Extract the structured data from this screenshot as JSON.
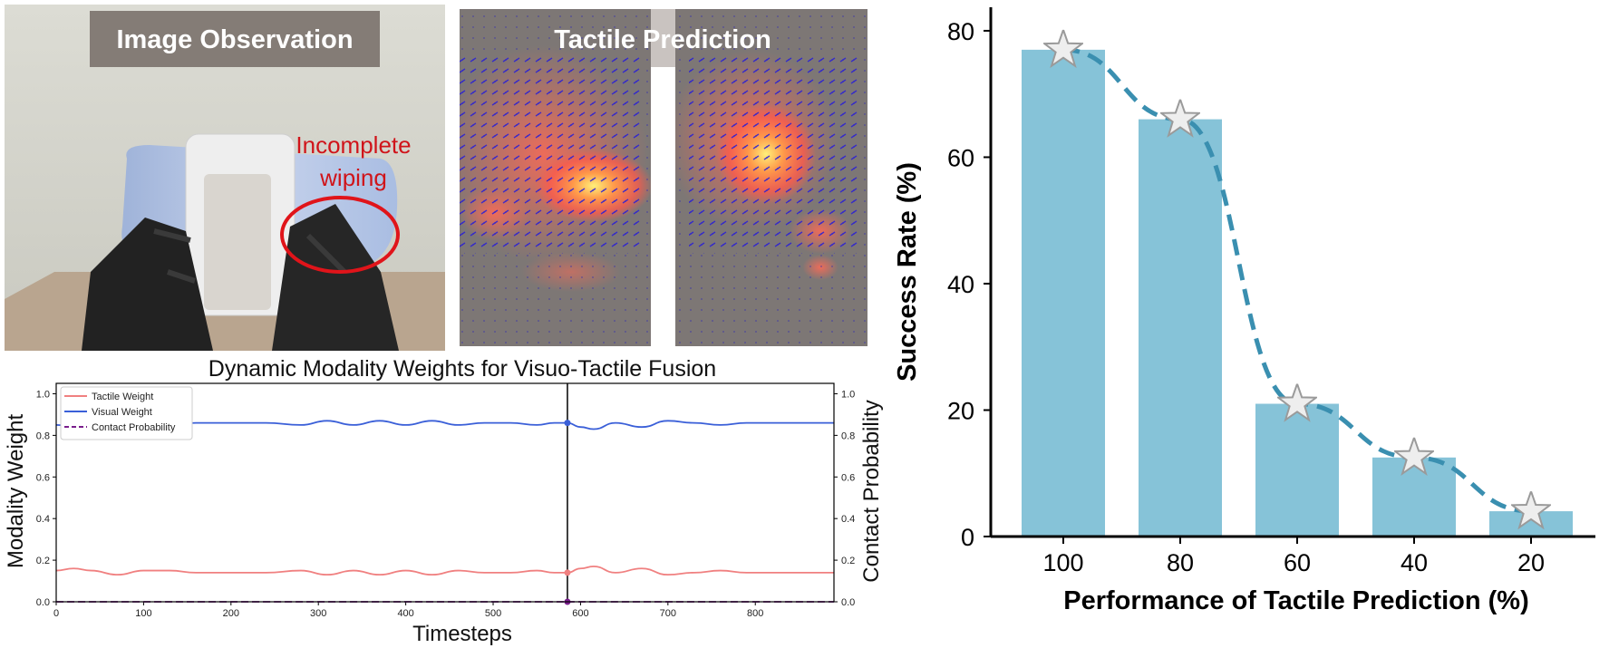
{
  "panels": {
    "image_observation": {
      "title": "Image Observation",
      "annotation": [
        "Incomplete",
        "wiping"
      ],
      "accent_color": "#d0141a"
    },
    "tactile_prediction": {
      "title": "Tactile Prediction",
      "arrow_color": "#2a1fd6"
    }
  },
  "chart_data": [
    {
      "type": "line",
      "title": "Dynamic Modality Weights for Visuo-Tactile Fusion",
      "xlabel": "Timesteps",
      "ylabel": "Modality Weight",
      "y2label": "Contact Probability",
      "xlim": [
        0,
        890
      ],
      "ylim": [
        0,
        1.05
      ],
      "y2lim": [
        0,
        1.05
      ],
      "xticks": [
        0,
        100,
        200,
        300,
        400,
        500,
        600,
        700,
        800
      ],
      "yticks": [
        0.0,
        0.2,
        0.4,
        0.6,
        0.8,
        1.0
      ],
      "y2ticks": [
        0.0,
        0.2,
        0.4,
        0.6,
        0.8,
        1.0
      ],
      "marker_x": 585,
      "legend_position": "top-left",
      "series": [
        {
          "name": "Tactile Weight",
          "color": "#f08080",
          "style": "solid",
          "x": [
            0,
            20,
            40,
            70,
            100,
            130,
            160,
            200,
            240,
            280,
            310,
            340,
            370,
            400,
            430,
            460,
            490,
            520,
            550,
            570,
            585,
            600,
            615,
            640,
            670,
            700,
            730,
            760,
            790,
            820,
            850,
            890
          ],
          "y": [
            0.15,
            0.16,
            0.15,
            0.13,
            0.15,
            0.15,
            0.14,
            0.14,
            0.14,
            0.15,
            0.13,
            0.15,
            0.13,
            0.15,
            0.13,
            0.15,
            0.14,
            0.14,
            0.15,
            0.14,
            0.14,
            0.16,
            0.17,
            0.14,
            0.16,
            0.13,
            0.14,
            0.15,
            0.14,
            0.14,
            0.14,
            0.14
          ]
        },
        {
          "name": "Visual Weight",
          "color": "#3a5fd8",
          "style": "solid",
          "x": [
            0,
            20,
            40,
            70,
            100,
            130,
            160,
            200,
            240,
            280,
            310,
            340,
            370,
            400,
            430,
            460,
            490,
            520,
            550,
            570,
            585,
            600,
            615,
            640,
            670,
            700,
            730,
            760,
            790,
            820,
            850,
            890
          ],
          "y": [
            0.85,
            0.84,
            0.85,
            0.87,
            0.85,
            0.85,
            0.86,
            0.86,
            0.86,
            0.85,
            0.87,
            0.85,
            0.87,
            0.85,
            0.87,
            0.85,
            0.86,
            0.86,
            0.85,
            0.86,
            0.86,
            0.84,
            0.83,
            0.86,
            0.84,
            0.87,
            0.86,
            0.85,
            0.86,
            0.86,
            0.86,
            0.86
          ]
        },
        {
          "name": "Contact Probability",
          "color": "#7a1e8c",
          "style": "dashed",
          "x": [
            0,
            890
          ],
          "y": [
            0.0,
            0.0
          ]
        }
      ]
    },
    {
      "type": "bar",
      "title": "",
      "xlabel": "Performance of Tactile Prediction (%)",
      "ylabel": "Success Rate (%)",
      "categories": [
        "100",
        "80",
        "60",
        "40",
        "20"
      ],
      "values": [
        77,
        66,
        21,
        12.5,
        4
      ],
      "ylim": [
        0,
        82
      ],
      "yticks": [
        0,
        20,
        40,
        60,
        80
      ],
      "bar_color": "#86c3d8",
      "trend_color": "#3a8fb0",
      "marker": "star"
    }
  ]
}
